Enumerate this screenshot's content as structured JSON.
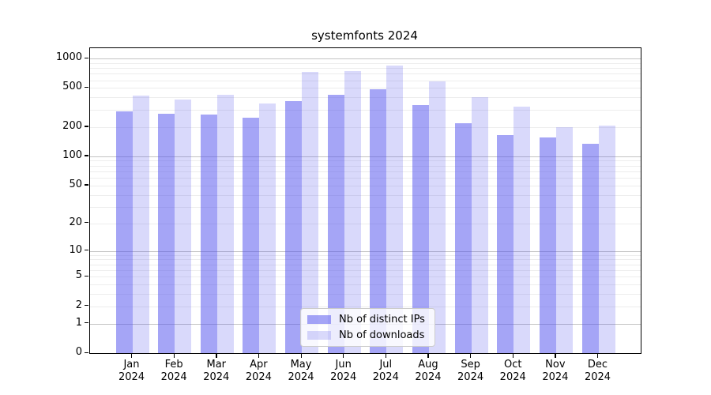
{
  "title": "systemfonts 2024",
  "chart_data": {
    "type": "bar",
    "title": "systemfonts 2024",
    "categories": [
      "Jan 2024",
      "Feb 2024",
      "Mar 2024",
      "Apr 2024",
      "May 2024",
      "Jun 2024",
      "Jul 2024",
      "Aug 2024",
      "Sep 2024",
      "Oct 2024",
      "Nov 2024",
      "Dec 2024"
    ],
    "series": [
      {
        "name": "Nb of distinct IPs",
        "color": "rgba(82,82,238,0.52)",
        "values": [
          290,
          275,
          270,
          250,
          370,
          430,
          485,
          335,
          220,
          165,
          155,
          135
        ]
      },
      {
        "name": "Nb of downloads",
        "color": "rgba(82,82,238,0.22)",
        "values": [
          420,
          385,
          430,
          350,
          730,
          745,
          850,
          585,
          405,
          320,
          200,
          205
        ]
      }
    ],
    "yscale": "log1p",
    "y_ticks": [
      0,
      1,
      2,
      5,
      10,
      20,
      50,
      100,
      200,
      500,
      1000
    ],
    "y_major_gridlines": [
      1,
      10,
      100,
      1000
    ],
    "ylim": [
      0,
      1220
    ],
    "grid": true,
    "legend_position": "bottom-center",
    "xlabel": "",
    "ylabel": ""
  }
}
